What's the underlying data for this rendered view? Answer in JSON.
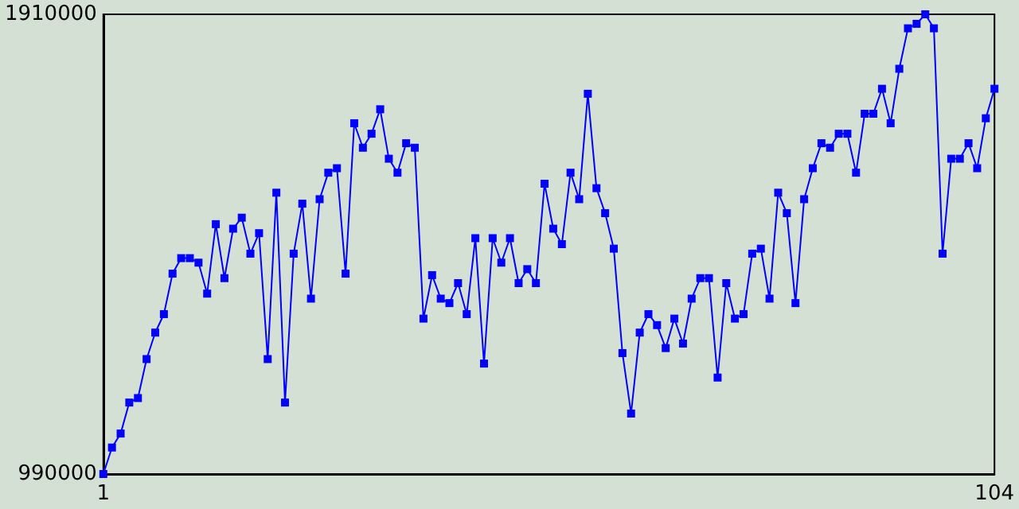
{
  "chart_data": {
    "type": "line",
    "x": [
      1,
      2,
      3,
      4,
      5,
      6,
      7,
      8,
      9,
      10,
      11,
      12,
      13,
      14,
      15,
      16,
      17,
      18,
      19,
      20,
      21,
      22,
      23,
      24,
      25,
      26,
      27,
      28,
      29,
      30,
      31,
      32,
      33,
      34,
      35,
      36,
      37,
      38,
      39,
      40,
      41,
      42,
      43,
      44,
      45,
      46,
      47,
      48,
      49,
      50,
      51,
      52,
      53,
      54,
      55,
      56,
      57,
      58,
      59,
      60,
      61,
      62,
      63,
      64,
      65,
      66,
      67,
      68,
      69,
      70,
      71,
      72,
      73,
      74,
      75,
      76,
      77,
      78,
      79,
      80,
      81,
      82,
      83,
      84,
      85,
      86,
      87,
      88,
      89,
      90,
      91,
      92,
      93,
      94,
      95,
      96,
      97,
      98,
      99,
      100,
      101,
      102,
      103,
      104
    ],
    "series": [
      {
        "color": "#0000ff",
        "values": [
          990000,
          1043000,
          1071000,
          1133000,
          1142000,
          1220000,
          1273000,
          1310000,
          1391000,
          1422000,
          1422000,
          1413000,
          1351000,
          1490000,
          1382000,
          1481000,
          1503000,
          1431000,
          1472000,
          1220000,
          1553000,
          1133000,
          1431000,
          1531000,
          1341000,
          1540000,
          1593000,
          1602000,
          1391000,
          1692000,
          1643000,
          1671000,
          1720000,
          1621000,
          1593000,
          1652000,
          1643000,
          1301000,
          1388000,
          1341000,
          1332000,
          1372000,
          1310000,
          1462000,
          1211000,
          1462000,
          1413000,
          1462000,
          1372000,
          1400000,
          1372000,
          1571000,
          1481000,
          1450000,
          1593000,
          1540000,
          1751000,
          1562000,
          1512000,
          1441000,
          1232000,
          1111000,
          1273000,
          1310000,
          1288000,
          1242000,
          1301000,
          1251000,
          1341000,
          1382000,
          1382000,
          1183000,
          1372000,
          1301000,
          1310000,
          1431000,
          1441000,
          1341000,
          1553000,
          1512000,
          1332000,
          1540000,
          1602000,
          1652000,
          1643000,
          1671000,
          1671000,
          1593000,
          1711000,
          1711000,
          1761000,
          1692000,
          1801000,
          1882000,
          1891000,
          1910000,
          1882000,
          1431000,
          1621000,
          1621000,
          1652000,
          1602000,
          1702000,
          1761000
        ]
      }
    ],
    "xlim": [
      1,
      104
    ],
    "xticks": [
      1,
      104
    ],
    "ylim": [
      990000,
      1910000
    ],
    "yticks": [
      990000,
      1910000
    ],
    "grid": false,
    "marker": "square",
    "line_style": "solid"
  }
}
